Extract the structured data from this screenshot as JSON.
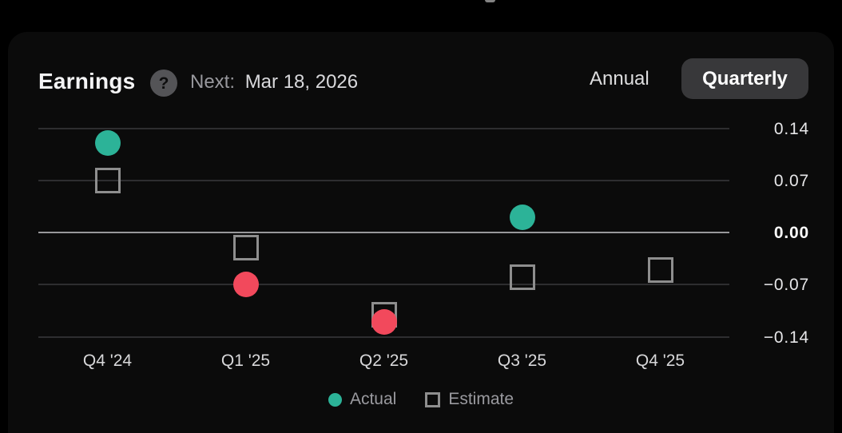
{
  "header": {
    "title": "Earnings",
    "help_glyph": "?",
    "next_label": "Next:",
    "next_date": "Mar 18, 2026",
    "toggle": {
      "annual_label": "Annual",
      "quarterly_label": "Quarterly",
      "selected": "Quarterly"
    }
  },
  "legend": {
    "actual_label": "Actual",
    "estimate_label": "Estimate"
  },
  "colors": {
    "beat": "#2CB398",
    "miss": "#F2495C",
    "estimate_outline": "#8E8E8E",
    "gridline": "#2E2E30",
    "zero_line": "#98989B",
    "pill_background": "#38383A",
    "background": "#000000"
  },
  "chart_data": {
    "type": "scatter",
    "title": "Earnings (EPS, quarterly)",
    "categories": [
      "Q4 '24",
      "Q1 '25",
      "Q2 '25",
      "Q3 '25",
      "Q4 '25"
    ],
    "series": [
      {
        "name": "Actual",
        "marker": "filled-circle",
        "values": [
          0.12,
          -0.07,
          -0.12,
          0.02,
          null
        ],
        "point_colors": [
          "#2CB398",
          "#F2495C",
          "#F2495C",
          "#2CB398",
          null
        ]
      },
      {
        "name": "Estimate",
        "marker": "outlined-square",
        "values": [
          0.07,
          -0.02,
          -0.11,
          -0.06,
          -0.05
        ]
      }
    ],
    "yticks": [
      {
        "label": "0.14",
        "value": 0.14
      },
      {
        "label": "0.07",
        "value": 0.07
      },
      {
        "label": "0.00",
        "value": 0
      },
      {
        "label": "−0.07",
        "value": -0.07
      },
      {
        "label": "−0.14",
        "value": -0.14
      }
    ],
    "ylim": [
      -0.175,
      0.175
    ],
    "grid": "horizontal",
    "legend_position": "bottom"
  }
}
